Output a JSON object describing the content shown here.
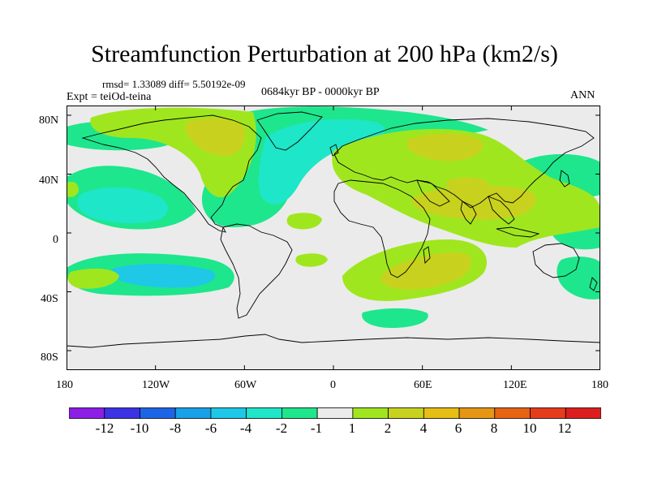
{
  "title": "Streamfunction Perturbation at 200 hPa (km2/s)",
  "stats": "rmsd= 1.33089 diff= 5.50192e-09",
  "experiment": "Expt = teiOd-teina",
  "period": "0684kyr BP - 0000kyr BP",
  "season": "ANN",
  "lat_ticks": [
    "80N",
    "40N",
    "0",
    "40S",
    "80S"
  ],
  "lon_ticks": [
    "180",
    "120W",
    "60W",
    "0",
    "60E",
    "120E",
    "180"
  ],
  "colorbar": {
    "labels": [
      "-12",
      "-10",
      "-8",
      "-6",
      "-4",
      "-2",
      "-1",
      "1",
      "2",
      "4",
      "6",
      "8",
      "10",
      "12"
    ],
    "colors": [
      "#8c1ee6",
      "#3c32e6",
      "#1e64e6",
      "#19a0e6",
      "#1ec8e6",
      "#1ee6c8",
      "#1ee68c",
      "#ebebeb",
      "#a0e61e",
      "#c8d21e",
      "#e6be14",
      "#e69614",
      "#e66414",
      "#e63c1e",
      "#dc1e1e"
    ]
  },
  "map_colors": {
    "background": "#ebebeb",
    "neg_light": "#1ee68c",
    "neg_mid": "#1ee6c8",
    "neg_strong": "#1ec8e6",
    "pos_light": "#a0e61e",
    "pos_mid": "#c8d21e",
    "coastline": "#000000"
  }
}
